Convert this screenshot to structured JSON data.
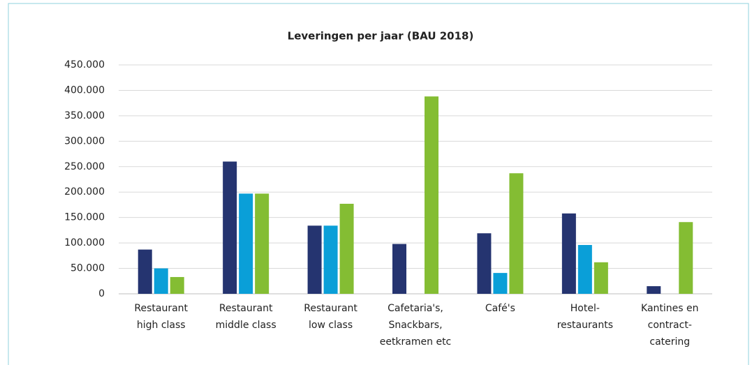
{
  "chart_data": {
    "type": "bar",
    "title": "Leveringen per jaar (BAU 2018)",
    "categories": [
      [
        "Restaurant",
        "high class"
      ],
      [
        "Restaurant",
        "middle class"
      ],
      [
        "Restaurant",
        "low class"
      ],
      [
        "Cafetaria's,",
        "Snackbars,",
        "eetkramen etc"
      ],
      [
        "Café's"
      ],
      [
        "Hotel-",
        "restaurants"
      ],
      [
        "Kantines en",
        "contract-",
        "catering"
      ]
    ],
    "series": [
      {
        "color": "#253470",
        "values": [
          87000,
          260000,
          134000,
          98000,
          119000,
          158000,
          15000
        ]
      },
      {
        "color": "#0a9fd8",
        "values": [
          50000,
          197000,
          134000,
          null,
          41000,
          96000,
          null
        ]
      },
      {
        "color": "#84bd33",
        "values": [
          33000,
          197000,
          177000,
          388000,
          237000,
          62000,
          141000
        ]
      }
    ],
    "ylim": [
      0,
      450000
    ],
    "yticks": [
      0,
      {
        "value": 50000,
        "label": "50.000"
      },
      {
        "value": 100000,
        "label": "100.000"
      },
      {
        "value": 150000,
        "label": "150.000"
      },
      {
        "value": 200000,
        "label": "200.000"
      },
      {
        "value": 250000,
        "label": "250.000"
      },
      {
        "value": 300000,
        "label": "300.000"
      },
      {
        "value": 350000,
        "label": "350.000"
      },
      {
        "value": 400000,
        "label": "400.000"
      },
      {
        "value": 450000,
        "label": "450.000"
      }
    ],
    "grid": true
  }
}
